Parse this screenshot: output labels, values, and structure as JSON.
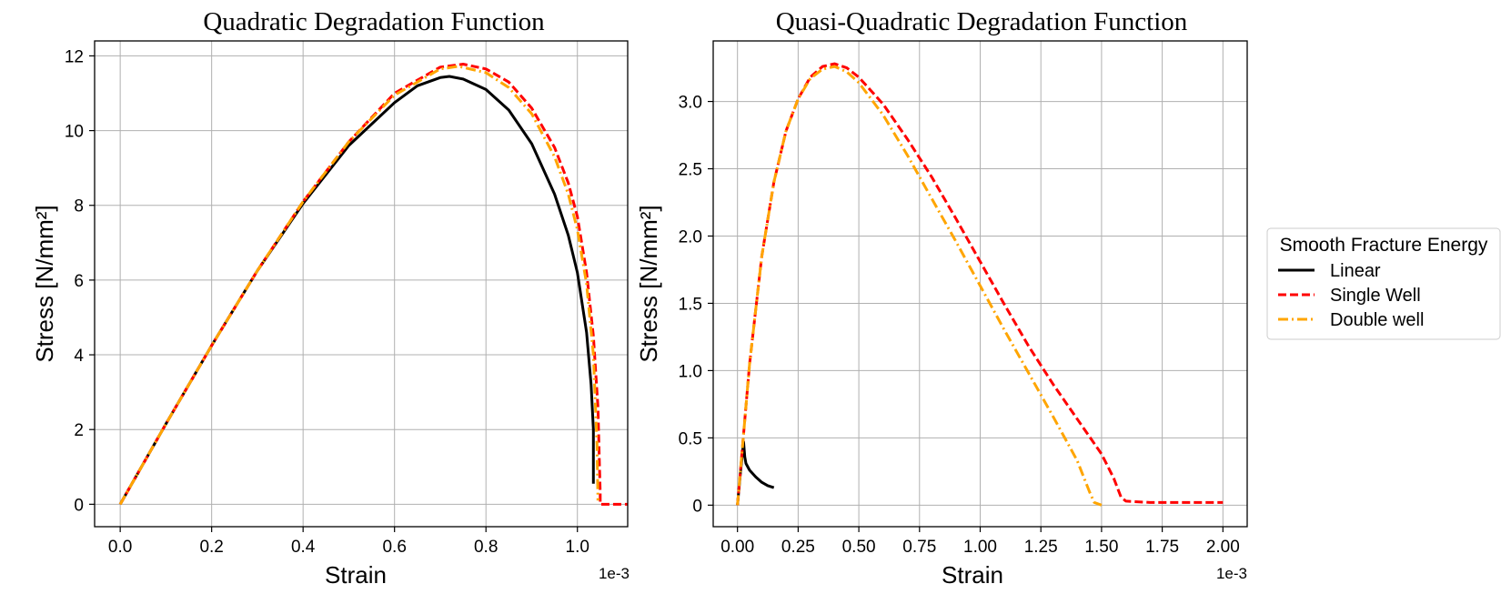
{
  "chart_data": [
    {
      "type": "line",
      "title": "Quadratic Degradation Function",
      "xlabel": "Strain",
      "ylabel": "Stress [N/mm²]",
      "x_offset_label": "1e-3",
      "xlim": [
        -0.056,
        1.11
      ],
      "ylim": [
        -0.6,
        12.4
      ],
      "xticks": [
        0.0,
        0.2,
        0.4,
        0.6,
        0.8,
        1.0
      ],
      "xtick_labels": [
        "0.0",
        "0.2",
        "0.4",
        "0.6",
        "0.8",
        "1.0"
      ],
      "yticks": [
        0,
        2,
        4,
        6,
        8,
        10,
        12
      ],
      "ytick_labels": [
        "0",
        "2",
        "4",
        "6",
        "8",
        "10",
        "12"
      ],
      "grid": true,
      "series": [
        {
          "name": "Linear",
          "color": "#000000",
          "dash": "solid",
          "x": [
            0,
            0.1,
            0.2,
            0.3,
            0.4,
            0.5,
            0.6,
            0.65,
            0.7,
            0.72,
            0.75,
            0.8,
            0.85,
            0.9,
            0.95,
            0.98,
            1.0,
            1.02,
            1.03,
            1.035,
            1.035
          ],
          "y": [
            0,
            2.15,
            4.25,
            6.25,
            8.05,
            9.6,
            10.75,
            11.2,
            11.42,
            11.45,
            11.38,
            11.1,
            10.55,
            9.65,
            8.3,
            7.2,
            6.2,
            4.6,
            3.2,
            2.0,
            0.55
          ]
        },
        {
          "name": "Single Well",
          "color": "#ff0000",
          "dash": "dashed",
          "x": [
            0,
            0.1,
            0.2,
            0.3,
            0.4,
            0.5,
            0.6,
            0.7,
            0.75,
            0.8,
            0.85,
            0.9,
            0.95,
            0.98,
            1.0,
            1.02,
            1.035,
            1.045,
            1.048,
            1.05,
            1.05,
            1.11
          ],
          "y": [
            0,
            2.15,
            4.25,
            6.25,
            8.1,
            9.7,
            11.0,
            11.7,
            11.78,
            11.65,
            11.3,
            10.6,
            9.55,
            8.6,
            7.7,
            6.2,
            4.5,
            2.6,
            1.2,
            0.3,
            0.0,
            0.0
          ]
        },
        {
          "name": "Double well",
          "color": "#ffa500",
          "dash": "dashdot",
          "x": [
            0,
            0.1,
            0.2,
            0.3,
            0.4,
            0.5,
            0.6,
            0.7,
            0.74,
            0.8,
            0.85,
            0.9,
            0.95,
            0.98,
            1.0,
            1.02,
            1.035,
            1.043,
            1.045
          ],
          "y": [
            0,
            2.15,
            4.25,
            6.25,
            8.1,
            9.7,
            10.95,
            11.65,
            11.72,
            11.55,
            11.15,
            10.45,
            9.3,
            8.3,
            7.35,
            5.9,
            4.0,
            1.6,
            0.1
          ]
        }
      ]
    },
    {
      "type": "line",
      "title": "Quasi-Quadratic Degradation Function",
      "xlabel": "Strain",
      "ylabel": "Stress [N/mm²]",
      "x_offset_label": "1e-3",
      "xlim": [
        -0.1,
        2.1
      ],
      "ylim": [
        -0.16,
        3.45
      ],
      "xticks": [
        0.0,
        0.25,
        0.5,
        0.75,
        1.0,
        1.25,
        1.5,
        1.75,
        2.0
      ],
      "xtick_labels": [
        "0.00",
        "0.25",
        "0.50",
        "0.75",
        "1.00",
        "1.25",
        "1.50",
        "1.75",
        "2.00"
      ],
      "yticks": [
        0.0,
        0.5,
        1.0,
        1.5,
        2.0,
        2.5,
        3.0
      ],
      "ytick_labels": [
        "0",
        "0.5",
        "1.0",
        "1.5",
        "2.0",
        "2.5",
        "3.0"
      ],
      "grid": true,
      "series": [
        {
          "name": "Linear",
          "color": "#000000",
          "dash": "solid",
          "x": [
            0,
            0.01,
            0.02,
            0.025,
            0.03,
            0.035,
            0.05,
            0.075,
            0.1,
            0.125,
            0.15
          ],
          "y": [
            0,
            0.2,
            0.38,
            0.47,
            0.36,
            0.31,
            0.26,
            0.21,
            0.17,
            0.145,
            0.13
          ]
        },
        {
          "name": "Single Well",
          "color": "#ff0000",
          "dash": "dashed",
          "x": [
            0,
            0.05,
            0.1,
            0.15,
            0.2,
            0.25,
            0.3,
            0.35,
            0.4,
            0.45,
            0.5,
            0.6,
            0.7,
            0.8,
            0.9,
            1.0,
            1.1,
            1.2,
            1.3,
            1.4,
            1.5,
            1.55,
            1.58,
            1.6,
            1.7,
            1.8,
            1.9,
            2.0
          ],
          "y": [
            0,
            1.05,
            1.85,
            2.4,
            2.78,
            3.02,
            3.18,
            3.26,
            3.28,
            3.25,
            3.18,
            2.98,
            2.72,
            2.44,
            2.13,
            1.81,
            1.49,
            1.18,
            0.9,
            0.64,
            0.38,
            0.2,
            0.06,
            0.03,
            0.02,
            0.02,
            0.02,
            0.02
          ]
        },
        {
          "name": "Double well",
          "color": "#ffa500",
          "dash": "dashdot",
          "x": [
            0,
            0.05,
            0.1,
            0.15,
            0.2,
            0.25,
            0.3,
            0.35,
            0.4,
            0.45,
            0.5,
            0.6,
            0.7,
            0.8,
            0.9,
            1.0,
            1.1,
            1.2,
            1.3,
            1.4,
            1.45,
            1.47,
            1.5
          ],
          "y": [
            0,
            1.05,
            1.85,
            2.4,
            2.78,
            3.02,
            3.17,
            3.24,
            3.26,
            3.22,
            3.14,
            2.9,
            2.6,
            2.28,
            1.96,
            1.63,
            1.3,
            0.98,
            0.66,
            0.33,
            0.1,
            0.02,
            0.0
          ]
        }
      ]
    }
  ],
  "legend": {
    "title": "Smooth Fracture Energy",
    "placement": "right-outside",
    "entries": [
      {
        "label": "Linear",
        "color": "#000000",
        "dash": "solid"
      },
      {
        "label": "Single Well",
        "color": "#ff0000",
        "dash": "dashed"
      },
      {
        "label": "Double well",
        "color": "#ffa500",
        "dash": "dashdot"
      }
    ]
  }
}
